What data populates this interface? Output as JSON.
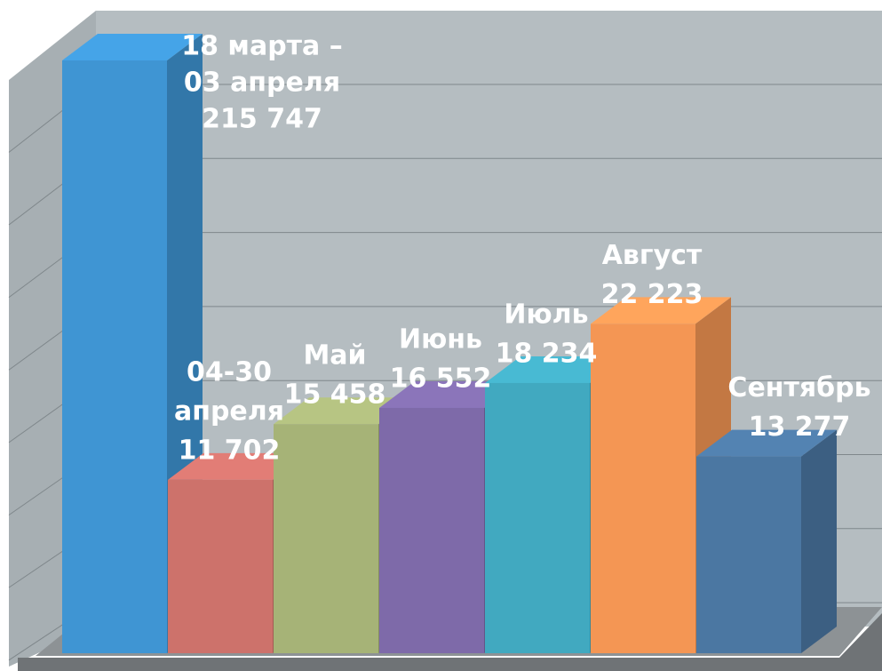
{
  "chart_data": {
    "type": "bar3d",
    "categories": [
      [
        "18 марта –",
        "03 апреля"
      ],
      [
        "04-30",
        "апреля"
      ],
      [
        "Май"
      ],
      [
        "Июнь"
      ],
      [
        "Июль"
      ],
      [
        "Август"
      ],
      [
        "Сентябрь"
      ]
    ],
    "values": [
      215747,
      11702,
      15458,
      16552,
      18234,
      22223,
      13277
    ],
    "value_labels": [
      "215 747",
      "11 702",
      "15 458",
      "16 552",
      "18 234",
      "22 223",
      "13 277"
    ],
    "colors": [
      "#3f95d3",
      "#cd726b",
      "#a6b377",
      "#7e6aa9",
      "#41a9c0",
      "#f49654",
      "#4b77a2"
    ],
    "ylim": [
      0,
      40000
    ]
  }
}
